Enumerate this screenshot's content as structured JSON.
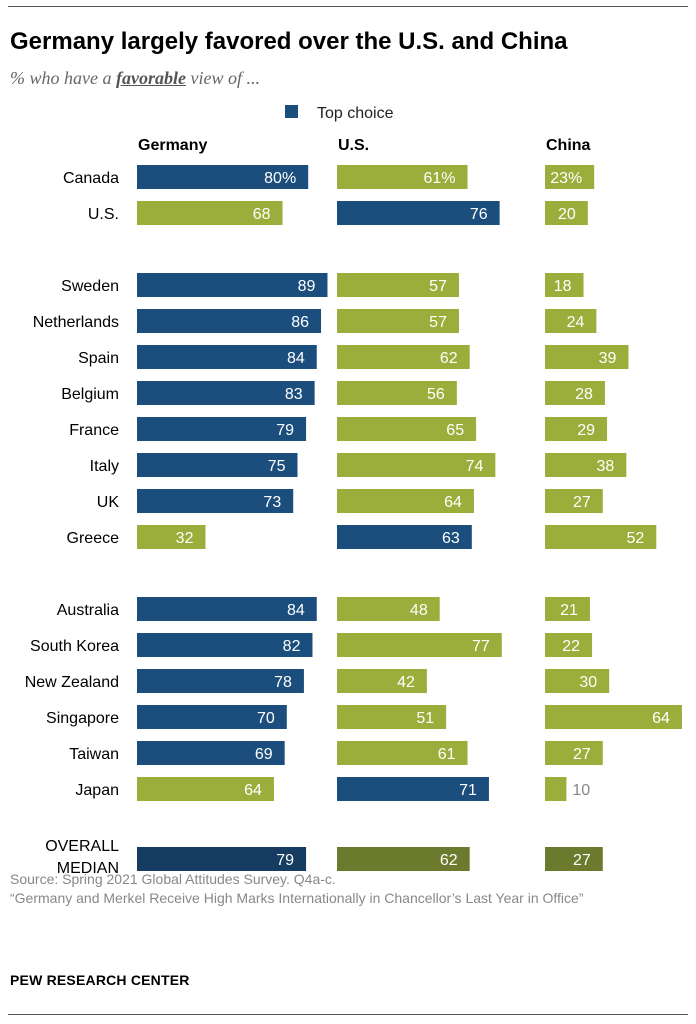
{
  "title": "Germany largely favored over the U.S. and China",
  "subtitle_prefix": "% who have a ",
  "subtitle_emphasis": "favorable",
  "subtitle_suffix": " view of ...",
  "source": "Source: Spring 2021 Global Attitudes Survey. Q4a-c.",
  "report": "“Germany and Merkel Receive High Marks Internationally in Chancellor’s Last Year in Office”",
  "brand": "PEW RESEARCH CENTER",
  "colors": {
    "top_choice": "#1b4e7d",
    "other": "#9bae3b",
    "median_top": "#173c61",
    "median_other": "#6b7a2c"
  },
  "chart_data": {
    "type": "bar",
    "legend": {
      "label": "Top choice",
      "placement": "top-center"
    },
    "series": [
      {
        "name": "Germany"
      },
      {
        "name": "U.S."
      },
      {
        "name": "China"
      }
    ],
    "rows": [
      {
        "country": "Canada",
        "values": [
          80,
          61,
          23
        ],
        "labels": [
          "80%",
          "61%",
          "23%"
        ],
        "top": [
          true,
          false,
          false
        ]
      },
      {
        "country": "U.S.",
        "values": [
          68,
          76,
          20
        ],
        "labels": [
          "68",
          "76",
          "20"
        ],
        "top": [
          false,
          true,
          false
        ]
      },
      {
        "country": "Sweden",
        "values": [
          89,
          57,
          18
        ],
        "labels": [
          "89",
          "57",
          "18"
        ],
        "top": [
          true,
          false,
          false
        ]
      },
      {
        "country": "Netherlands",
        "values": [
          86,
          57,
          24
        ],
        "labels": [
          "86",
          "57",
          "24"
        ],
        "top": [
          true,
          false,
          false
        ]
      },
      {
        "country": "Spain",
        "values": [
          84,
          62,
          39
        ],
        "labels": [
          "84",
          "62",
          "39"
        ],
        "top": [
          true,
          false,
          false
        ]
      },
      {
        "country": "Belgium",
        "values": [
          83,
          56,
          28
        ],
        "labels": [
          "83",
          "56",
          "28"
        ],
        "top": [
          true,
          false,
          false
        ]
      },
      {
        "country": "France",
        "values": [
          79,
          65,
          29
        ],
        "labels": [
          "79",
          "65",
          "29"
        ],
        "top": [
          true,
          false,
          false
        ]
      },
      {
        "country": "Italy",
        "values": [
          75,
          74,
          38
        ],
        "labels": [
          "75",
          "74",
          "38"
        ],
        "top": [
          true,
          false,
          false
        ]
      },
      {
        "country": "UK",
        "values": [
          73,
          64,
          27
        ],
        "labels": [
          "73",
          "64",
          "27"
        ],
        "top": [
          true,
          false,
          false
        ]
      },
      {
        "country": "Greece",
        "values": [
          32,
          63,
          52
        ],
        "labels": [
          "32",
          "63",
          "52"
        ],
        "top": [
          false,
          true,
          false
        ]
      },
      {
        "country": "Australia",
        "values": [
          84,
          48,
          21
        ],
        "labels": [
          "84",
          "48",
          "21"
        ],
        "top": [
          true,
          false,
          false
        ]
      },
      {
        "country": "South Korea",
        "values": [
          82,
          77,
          22
        ],
        "labels": [
          "82",
          "77",
          "22"
        ],
        "top": [
          true,
          false,
          false
        ]
      },
      {
        "country": "New Zealand",
        "values": [
          78,
          42,
          30
        ],
        "labels": [
          "78",
          "42",
          "30"
        ],
        "top": [
          true,
          false,
          false
        ]
      },
      {
        "country": "Singapore",
        "values": [
          70,
          51,
          64
        ],
        "labels": [
          "70",
          "51",
          "64"
        ],
        "top": [
          true,
          false,
          false
        ]
      },
      {
        "country": "Taiwan",
        "values": [
          69,
          61,
          27
        ],
        "labels": [
          "69",
          "61",
          "27"
        ],
        "top": [
          true,
          false,
          false
        ]
      },
      {
        "country": "Japan",
        "values": [
          64,
          71,
          10
        ],
        "labels": [
          "64",
          "71",
          "10"
        ],
        "top": [
          false,
          true,
          false
        ]
      }
    ],
    "median": {
      "label_line1": "OVERALL",
      "label_line2": "MEDIAN",
      "values": [
        79,
        62,
        27
      ],
      "labels": [
        "79",
        "62",
        "27"
      ]
    }
  }
}
